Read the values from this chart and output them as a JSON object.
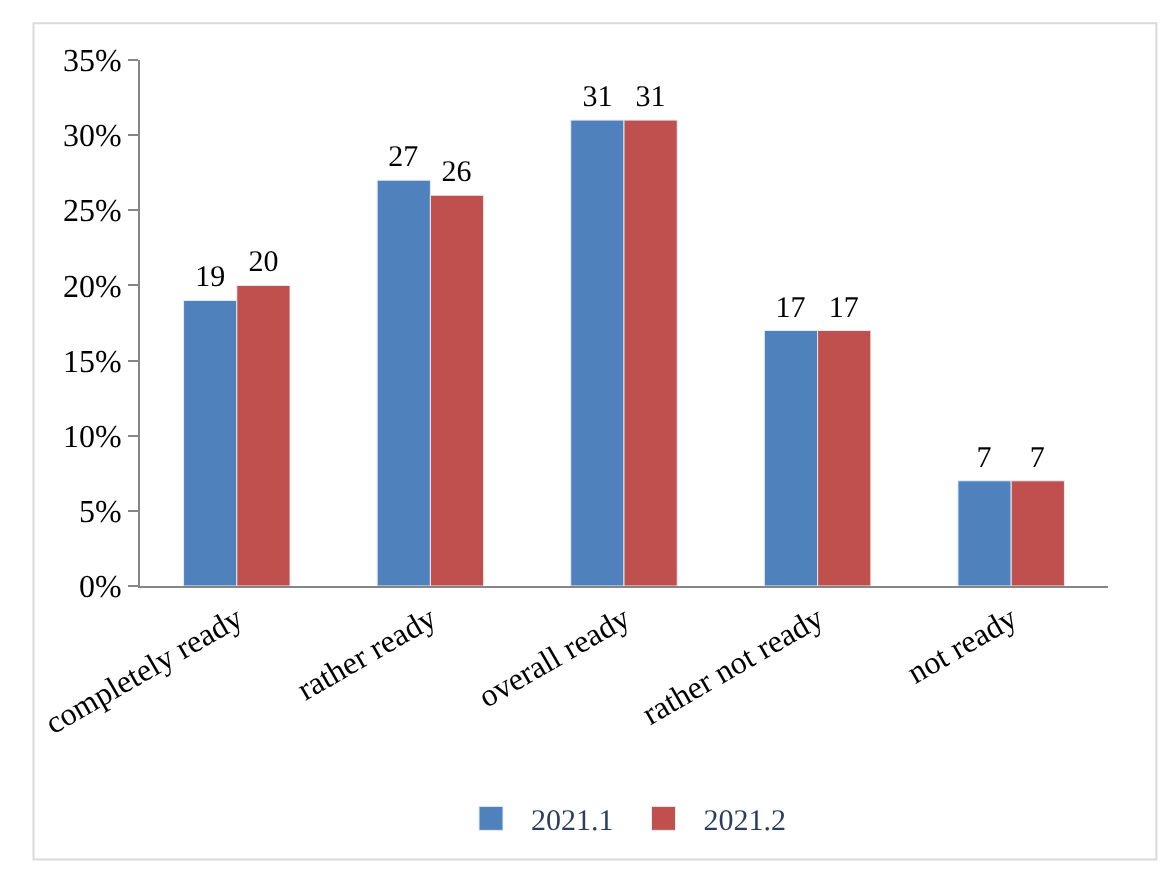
{
  "chart_data": {
    "type": "bar",
    "categories": [
      "completely ready",
      "rather ready",
      "overall ready",
      "rather not ready",
      "not ready"
    ],
    "series": [
      {
        "name": "2021.1",
        "color": "#4f81bd",
        "values": [
          19,
          27,
          31,
          17,
          7
        ]
      },
      {
        "name": "2021.2",
        "color": "#c0504d",
        "values": [
          20,
          26,
          31,
          17,
          7
        ]
      }
    ],
    "ylim": [
      0,
      35
    ],
    "yticks": [
      {
        "value": 0,
        "label": "0%"
      },
      {
        "value": 5,
        "label": "5%"
      },
      {
        "value": 10,
        "label": "10%"
      },
      {
        "value": 15,
        "label": "15%"
      },
      {
        "value": 20,
        "label": "20%"
      },
      {
        "value": 25,
        "label": "25%"
      },
      {
        "value": 30,
        "label": "30%"
      },
      {
        "value": 35,
        "label": "35%"
      }
    ],
    "data_labels": true,
    "grid": false,
    "legend": "bottom"
  }
}
